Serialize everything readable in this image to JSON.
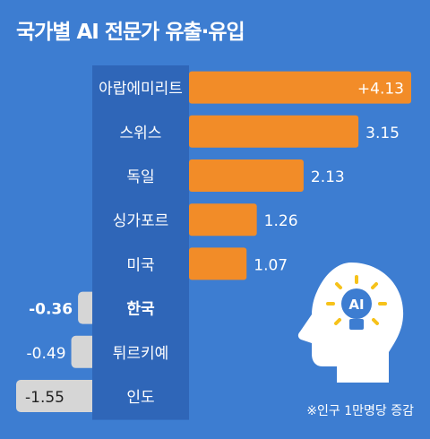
{
  "title": "국가별 AI 전문가 유출·유입",
  "note": "※인구 1만명당 증감",
  "icon": {
    "name": "ai-head-lightbulb-icon",
    "label": "AI"
  },
  "colors": {
    "background": "#3D7DD1",
    "label_panel": "#2F66B8",
    "positive_bar": "#F28C28",
    "negative_bar": "#D6D6D6",
    "text_light": "#ffffff",
    "text_dark": "#222222",
    "icon_fill": "#ffffff",
    "icon_accent": "#F6C21A"
  },
  "chart_data": {
    "type": "bar",
    "orientation": "horizontal",
    "title": "국가별 AI 전문가 유출·유입",
    "categories": [
      "아랍에미리트",
      "스위스",
      "독일",
      "싱가포르",
      "미국",
      "한국",
      "튀르키예",
      "인도"
    ],
    "values": [
      4.13,
      3.15,
      2.13,
      1.26,
      1.07,
      -0.36,
      -0.49,
      -1.55
    ],
    "value_labels": [
      "+4.13",
      "3.15",
      "2.13",
      "1.26",
      "1.07",
      "-0.36",
      "-0.49",
      "-1.55"
    ],
    "highlight": "한국",
    "xlim": [
      -1.55,
      4.13
    ],
    "grid": false,
    "legend": "none",
    "unit": "※인구 1만명당 증감"
  }
}
